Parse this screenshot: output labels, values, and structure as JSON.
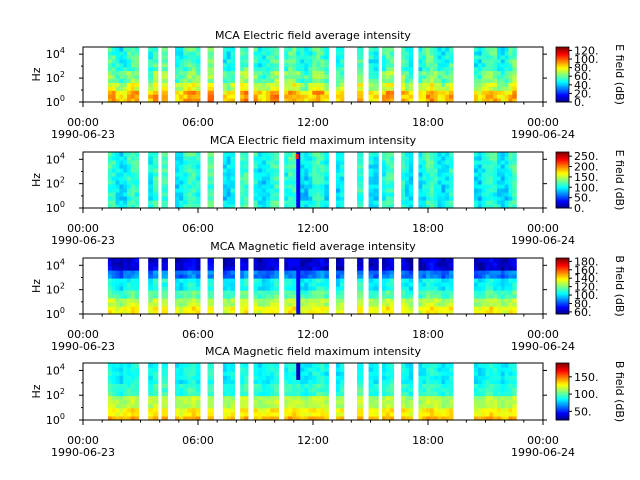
{
  "chart_data": [
    {
      "type": "heatmap",
      "title": "MCA  Electric field average intensity",
      "ylabel": "Hz",
      "ytick_labels": [
        {
          "base": "10",
          "exp": "0"
        },
        {
          "base": "10",
          "exp": "2"
        },
        {
          "base": "10",
          "exp": "4"
        }
      ],
      "xtick_labels": [
        "00:00",
        "06:00",
        "12:00",
        "18:00",
        "00:00"
      ],
      "date_labels": [
        "1990-06-23",
        "1990-06-24"
      ],
      "xlim": [
        "1990-06-23 00:00",
        "1990-06-24 00:00"
      ],
      "ylim_log10_hz": [
        0,
        4.6
      ],
      "colorbar": {
        "label": "E field (dB)",
        "ticks": [
          "0.",
          "20.",
          "40.",
          "60.",
          "80.",
          "100.",
          "120."
        ],
        "range": [
          0,
          128
        ],
        "colormap": "jet"
      },
      "data_intervals_hours": [
        [
          1.3,
          2.9
        ],
        [
          3.4,
          3.9
        ],
        [
          4.1,
          4.4
        ],
        [
          4.8,
          6.1
        ],
        [
          6.5,
          6.8
        ],
        [
          7.3,
          7.9
        ],
        [
          8.2,
          8.6
        ],
        [
          8.9,
          10.2
        ],
        [
          10.5,
          12.8
        ],
        [
          13.2,
          13.6
        ],
        [
          14.3,
          14.6
        ],
        [
          14.9,
          15.4
        ],
        [
          15.6,
          16.2
        ],
        [
          16.6,
          17.2
        ],
        [
          17.5,
          19.3
        ],
        [
          20.4,
          22.6
        ]
      ],
      "profile": "average",
      "field": "E"
    },
    {
      "type": "heatmap",
      "title": "MCA  Electric field maximum intensity",
      "ylabel": "Hz",
      "ytick_labels": [
        {
          "base": "10",
          "exp": "0"
        },
        {
          "base": "10",
          "exp": "2"
        },
        {
          "base": "10",
          "exp": "4"
        }
      ],
      "xtick_labels": [
        "00:00",
        "06:00",
        "12:00",
        "18:00",
        "00:00"
      ],
      "date_labels": [
        "1990-06-23",
        "1990-06-24"
      ],
      "xlim": [
        "1990-06-23 00:00",
        "1990-06-24 00:00"
      ],
      "ylim_log10_hz": [
        0,
        4.6
      ],
      "colorbar": {
        "label": "E field (dB)",
        "ticks": [
          "0.",
          "50.",
          "100.",
          "150.",
          "200.",
          "250."
        ],
        "range": [
          0,
          270
        ],
        "colormap": "jet"
      },
      "data_intervals_hours": [
        [
          1.3,
          2.9
        ],
        [
          3.4,
          3.9
        ],
        [
          4.1,
          4.4
        ],
        [
          4.8,
          6.1
        ],
        [
          6.5,
          6.8
        ],
        [
          7.3,
          7.9
        ],
        [
          8.2,
          8.6
        ],
        [
          8.9,
          10.2
        ],
        [
          10.5,
          12.8
        ],
        [
          13.2,
          13.6
        ],
        [
          14.3,
          14.6
        ],
        [
          14.9,
          15.4
        ],
        [
          15.6,
          16.2
        ],
        [
          16.6,
          17.2
        ],
        [
          17.5,
          19.3
        ],
        [
          20.4,
          22.6
        ]
      ],
      "profile": "maximum",
      "field": "E"
    },
    {
      "type": "heatmap",
      "title": "MCA  Magnetic field average intensity",
      "ylabel": "Hz",
      "ytick_labels": [
        {
          "base": "10",
          "exp": "0"
        },
        {
          "base": "10",
          "exp": "2"
        },
        {
          "base": "10",
          "exp": "4"
        }
      ],
      "xtick_labels": [
        "00:00",
        "06:00",
        "12:00",
        "18:00",
        "00:00"
      ],
      "date_labels": [
        "1990-06-23",
        "1990-06-24"
      ],
      "xlim": [
        "1990-06-23 00:00",
        "1990-06-24 00:00"
      ],
      "ylim_log10_hz": [
        0,
        4.6
      ],
      "colorbar": {
        "label": "B field (dB)",
        "ticks": [
          "60.",
          "80.",
          "100.",
          "120.",
          "140.",
          "160.",
          "180."
        ],
        "range": [
          55,
          188
        ],
        "colormap": "jet"
      },
      "data_intervals_hours": [
        [
          1.3,
          2.9
        ],
        [
          3.4,
          3.9
        ],
        [
          4.1,
          4.4
        ],
        [
          4.8,
          6.1
        ],
        [
          6.5,
          6.8
        ],
        [
          7.3,
          7.9
        ],
        [
          8.2,
          8.6
        ],
        [
          8.9,
          10.2
        ],
        [
          10.5,
          12.8
        ],
        [
          13.2,
          13.6
        ],
        [
          14.3,
          14.6
        ],
        [
          14.9,
          15.4
        ],
        [
          15.6,
          16.2
        ],
        [
          16.6,
          17.2
        ],
        [
          17.5,
          19.3
        ],
        [
          20.4,
          22.6
        ]
      ],
      "profile": "b_average",
      "field": "B"
    },
    {
      "type": "heatmap",
      "title": "MCA  Magnetic field maximum intensity",
      "ylabel": "Hz",
      "ytick_labels": [
        {
          "base": "10",
          "exp": "0"
        },
        {
          "base": "10",
          "exp": "2"
        },
        {
          "base": "10",
          "exp": "4"
        }
      ],
      "xtick_labels": [
        "00:00",
        "06:00",
        "12:00",
        "18:00",
        "00:00"
      ],
      "date_labels": [
        "1990-06-23",
        "1990-06-24"
      ],
      "xlim": [
        "1990-06-23 00:00",
        "1990-06-24 00:00"
      ],
      "ylim_log10_hz": [
        0,
        4.6
      ],
      "colorbar": {
        "label": "B field (dB)",
        "ticks": [
          "50.",
          "100.",
          "150."
        ],
        "range": [
          25,
          190
        ],
        "colormap": "jet"
      },
      "data_intervals_hours": [
        [
          1.3,
          2.9
        ],
        [
          3.4,
          3.9
        ],
        [
          4.1,
          4.4
        ],
        [
          4.8,
          6.1
        ],
        [
          6.5,
          6.8
        ],
        [
          7.3,
          7.9
        ],
        [
          8.2,
          8.6
        ],
        [
          8.9,
          10.2
        ],
        [
          10.5,
          12.8
        ],
        [
          13.2,
          13.6
        ],
        [
          14.3,
          14.6
        ],
        [
          14.9,
          15.4
        ],
        [
          15.6,
          16.2
        ],
        [
          16.6,
          17.2
        ],
        [
          17.5,
          19.3
        ],
        [
          20.4,
          22.6
        ]
      ],
      "profile": "b_maximum",
      "field": "B"
    }
  ]
}
